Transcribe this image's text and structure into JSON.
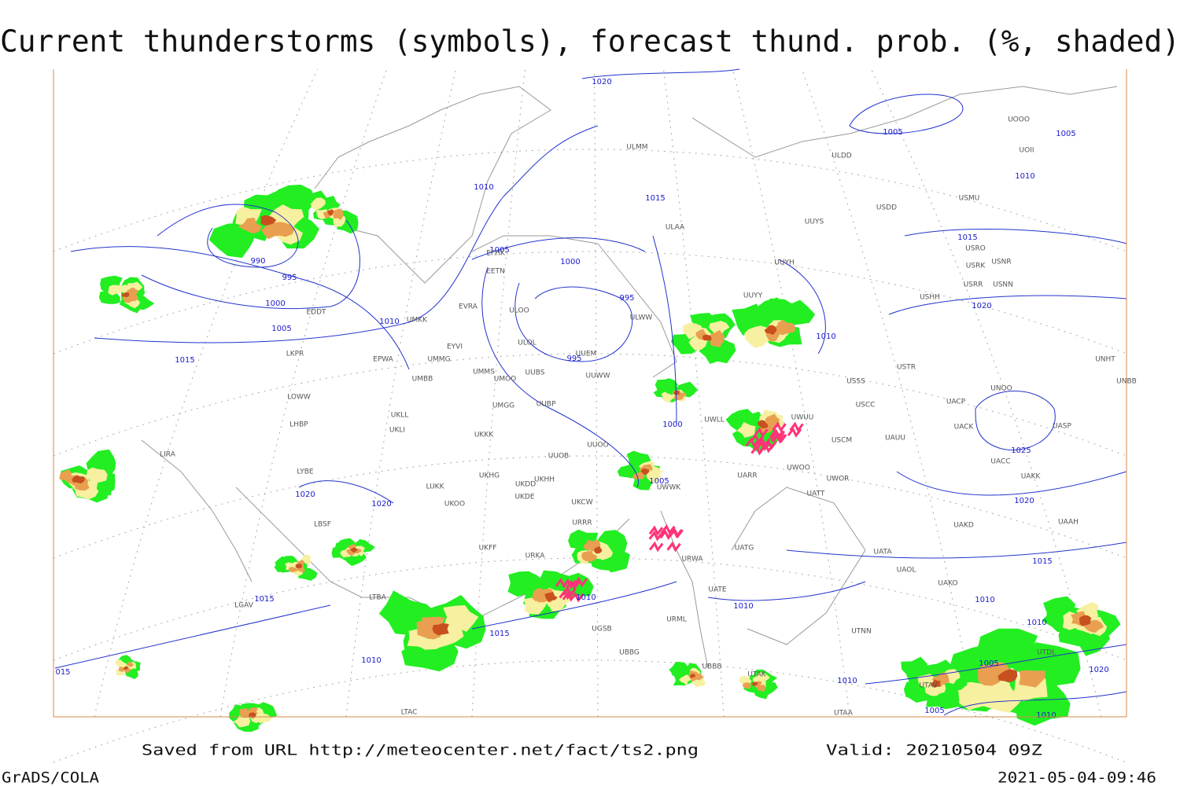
{
  "header": {
    "title": "Current thunderstorms (symbols), forecast thund. prob. (%, shaded)"
  },
  "isobar_labels": [
    1020,
    1005,
    1005,
    1010,
    1015,
    1010,
    990,
    995,
    1000,
    1005,
    1005,
    1000,
    995,
    1015,
    1020,
    1010,
    1015,
    995,
    1010,
    1000,
    1005,
    1025,
    1020,
    1020,
    1020,
    1015,
    1015,
    1010,
    1010,
    1015,
    1010,
    1010,
    1010,
    1005,
    1020,
    1010,
    1005,
    1010,
    "015"
  ],
  "stations": [
    "UOOO",
    "UOII",
    "ULDD",
    "ULMM",
    "USMU",
    "USDD",
    "UUYS",
    "ULAA",
    "USRO",
    "USRK",
    "USNR",
    "USRR",
    "USNN",
    "USHH",
    "UUYH",
    "UUYY",
    "EFHK",
    "EETN",
    "EVRA",
    "ULOO",
    "ULWW",
    "UMKK",
    "ULOL",
    "UUEM",
    "EYVI",
    "EDDT",
    "EPWA",
    "UMMG",
    "LKPR",
    "UMMS",
    "UMOO",
    "UUBS",
    "UUWW",
    "UMBB",
    "LOWW",
    "UMGG",
    "UUBP",
    "USSS",
    "USTR",
    "USCC",
    "UNBB",
    "UNHT",
    "UNOO",
    "UACP",
    "UACK",
    "UASP",
    "LHBP",
    "UKLL",
    "UKLI",
    "UKKK",
    "UUOO",
    "UWLL",
    "UWUU",
    "USCM",
    "UAUU",
    "LIRA",
    "UUOB",
    "UACC",
    "UAKK",
    "LYBE",
    "UWOO",
    "UWOR",
    "UKHG",
    "UKDD",
    "UKHH",
    "LUKK",
    "UKOO",
    "UKDE",
    "UWWK",
    "UATT",
    "UARR",
    "UKCW",
    "LBSF",
    "UAKD",
    "UAAH",
    "URRR",
    "UKFF",
    "UATG",
    "UATA",
    "UAOL",
    "URKA",
    "URWA",
    "UAKO",
    "UATE",
    "URML",
    "UTNN",
    "UBBB",
    "UTAK",
    "UTAA",
    "LTAC",
    "UGSB",
    "UBBG",
    "UTDL",
    "UTAV",
    "LGAV",
    "LTBA"
  ],
  "footer": {
    "saved": "Saved from URL http://meteocenter.net/fact/ts2.png",
    "valid": "Valid: 20210504 09Z",
    "software": "GrADS/COLA",
    "timestamp": "2021-05-04-09:46"
  }
}
